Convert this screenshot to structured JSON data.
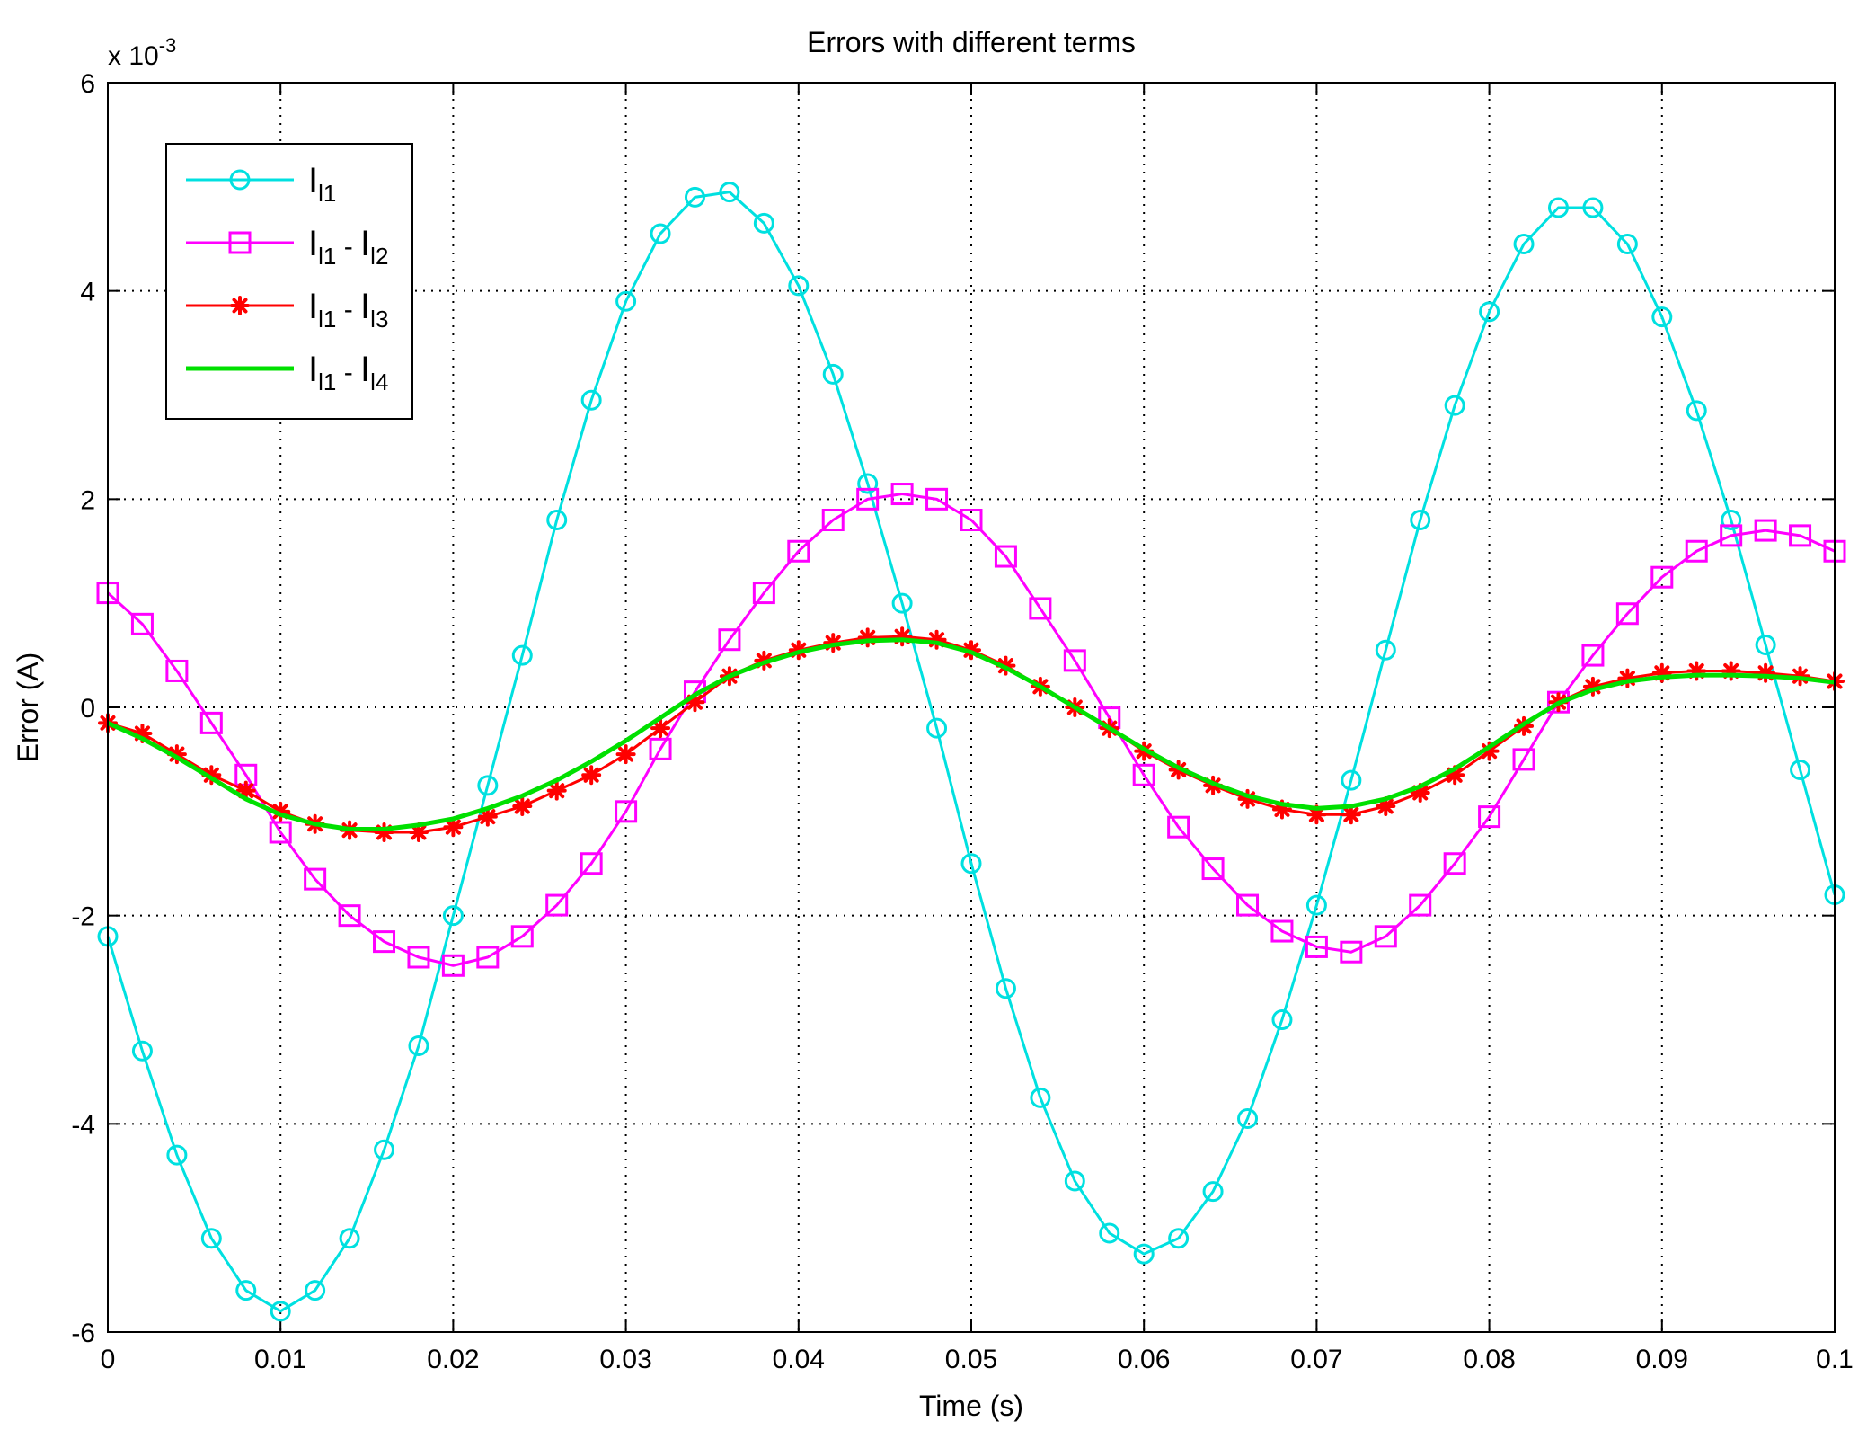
{
  "chart_data": {
    "type": "line",
    "title": "Errors with different terms",
    "xlabel": "Time (s)",
    "ylabel": "Error (A)",
    "y_exponent_label": {
      "prefix": "x 10",
      "exponent": "-3"
    },
    "xlim": [
      0,
      0.1
    ],
    "ylim": [
      -6,
      6
    ],
    "x_ticks": [
      0,
      0.01,
      0.02,
      0.03,
      0.04,
      0.05,
      0.06,
      0.07,
      0.08,
      0.09,
      0.1
    ],
    "x_tick_labels": [
      "0",
      "0.01",
      "0.02",
      "0.03",
      "0.04",
      "0.05",
      "0.06",
      "0.07",
      "0.08",
      "0.09",
      "0.1"
    ],
    "y_ticks": [
      -6,
      -4,
      -2,
      0,
      2,
      4,
      6
    ],
    "y_tick_labels": [
      "-6",
      "-4",
      "-2",
      "0",
      "2",
      "4",
      "6"
    ],
    "grid": true,
    "legend_position": "top-left",
    "x": [
      0,
      0.002,
      0.004,
      0.006,
      0.008,
      0.01,
      0.012,
      0.014,
      0.016,
      0.018,
      0.02,
      0.022,
      0.024,
      0.026,
      0.028,
      0.03,
      0.032,
      0.034,
      0.036,
      0.038,
      0.04,
      0.042,
      0.044,
      0.046,
      0.048,
      0.05,
      0.052,
      0.054,
      0.056,
      0.058,
      0.06,
      0.062,
      0.064,
      0.066,
      0.068,
      0.07,
      0.072,
      0.074,
      0.076,
      0.078,
      0.08,
      0.082,
      0.084,
      0.086,
      0.088,
      0.09,
      0.092,
      0.094,
      0.096,
      0.098,
      0.1
    ],
    "series": [
      {
        "legend": {
          "main": "I",
          "sub": "l1"
        },
        "color": "#00e0e0",
        "marker": "circle",
        "values": [
          -2.2,
          -3.3,
          -4.3,
          -5.1,
          -5.6,
          -5.8,
          -5.6,
          -5.1,
          -4.25,
          -3.25,
          -2.0,
          -0.75,
          0.5,
          1.8,
          2.95,
          3.9,
          4.55,
          4.9,
          4.95,
          4.65,
          4.05,
          3.2,
          2.15,
          1.0,
          -0.2,
          -1.5,
          -2.7,
          -3.75,
          -4.55,
          -5.05,
          -5.25,
          -5.1,
          -4.65,
          -3.95,
          -3.0,
          -1.9,
          -0.7,
          0.55,
          1.8,
          2.9,
          3.8,
          4.45,
          4.8,
          4.8,
          4.45,
          3.75,
          2.85,
          1.8,
          0.6,
          -0.6,
          -1.8
        ]
      },
      {
        "legend": {
          "main": "I",
          "sub": "l1",
          "sep": " - ",
          "main2": "I",
          "sub2": "l2"
        },
        "color": "#ff00ff",
        "marker": "square",
        "values": [
          1.1,
          0.8,
          0.35,
          -0.15,
          -0.65,
          -1.2,
          -1.65,
          -2.0,
          -2.25,
          -2.4,
          -2.48,
          -2.4,
          -2.2,
          -1.9,
          -1.5,
          -1.0,
          -0.4,
          0.15,
          0.65,
          1.1,
          1.5,
          1.8,
          2.0,
          2.05,
          2.0,
          1.8,
          1.45,
          0.95,
          0.45,
          -0.1,
          -0.65,
          -1.15,
          -1.55,
          -1.9,
          -2.15,
          -2.3,
          -2.35,
          -2.2,
          -1.9,
          -1.5,
          -1.05,
          -0.5,
          0.05,
          0.5,
          0.9,
          1.25,
          1.5,
          1.65,
          1.7,
          1.65,
          1.5
        ]
      },
      {
        "legend": {
          "main": "I",
          "sub": "l1",
          "sep": " - ",
          "main2": "I",
          "sub2": "l3"
        },
        "color": "#ff0000",
        "marker": "star",
        "values": [
          -0.15,
          -0.25,
          -0.45,
          -0.65,
          -0.8,
          -1.0,
          -1.12,
          -1.18,
          -1.2,
          -1.2,
          -1.15,
          -1.05,
          -0.95,
          -0.8,
          -0.65,
          -0.45,
          -0.2,
          0.05,
          0.3,
          0.45,
          0.55,
          0.62,
          0.67,
          0.68,
          0.65,
          0.55,
          0.4,
          0.2,
          0.0,
          -0.2,
          -0.42,
          -0.6,
          -0.75,
          -0.88,
          -0.98,
          -1.03,
          -1.03,
          -0.95,
          -0.82,
          -0.65,
          -0.42,
          -0.18,
          0.05,
          0.2,
          0.28,
          0.33,
          0.35,
          0.35,
          0.33,
          0.3,
          0.25
        ]
      },
      {
        "legend": {
          "main": "I",
          "sub": "l1",
          "sep": " - ",
          "main2": "I",
          "sub2": "l4"
        },
        "color": "#00e000",
        "marker": "none",
        "values": [
          -0.15,
          -0.3,
          -0.48,
          -0.68,
          -0.88,
          -1.03,
          -1.12,
          -1.17,
          -1.17,
          -1.13,
          -1.07,
          -0.97,
          -0.85,
          -0.7,
          -0.52,
          -0.32,
          -0.1,
          0.12,
          0.3,
          0.43,
          0.53,
          0.6,
          0.64,
          0.65,
          0.62,
          0.53,
          0.38,
          0.2,
          0.0,
          -0.2,
          -0.4,
          -0.58,
          -0.73,
          -0.85,
          -0.93,
          -0.97,
          -0.95,
          -0.88,
          -0.76,
          -0.59,
          -0.38,
          -0.16,
          0.04,
          0.17,
          0.25,
          0.29,
          0.31,
          0.31,
          0.3,
          0.28,
          0.24
        ]
      }
    ]
  }
}
